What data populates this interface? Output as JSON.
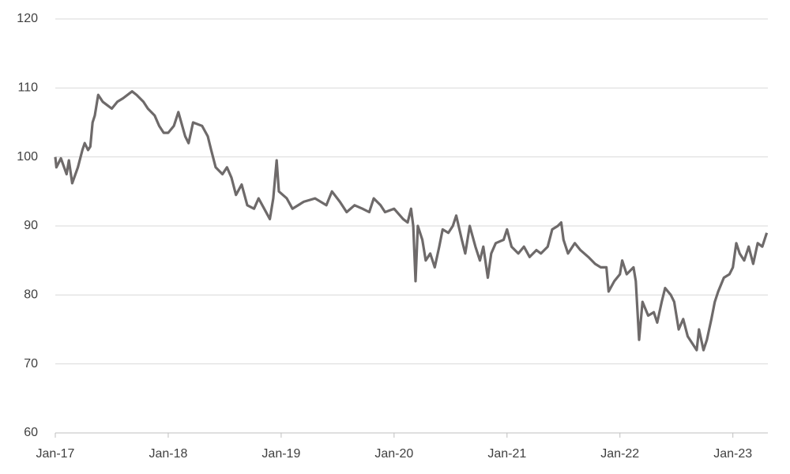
{
  "chart_data": {
    "type": "line",
    "x": [
      2017.0,
      2017.01,
      2017.05,
      2017.1,
      2017.12,
      2017.15,
      2017.2,
      2017.24,
      2017.26,
      2017.29,
      2017.31,
      2017.33,
      2017.35,
      2017.38,
      2017.42,
      2017.46,
      2017.5,
      2017.55,
      2017.6,
      2017.68,
      2017.72,
      2017.78,
      2017.82,
      2017.88,
      2017.92,
      2017.96,
      2018.0,
      2018.05,
      2018.09,
      2018.15,
      2018.18,
      2018.22,
      2018.3,
      2018.35,
      2018.38,
      2018.42,
      2018.48,
      2018.52,
      2018.56,
      2018.6,
      2018.65,
      2018.7,
      2018.76,
      2018.8,
      2018.9,
      2018.93,
      2018.96,
      2018.98,
      2019.05,
      2019.1,
      2019.2,
      2019.3,
      2019.4,
      2019.45,
      2019.52,
      2019.58,
      2019.65,
      2019.72,
      2019.78,
      2019.82,
      2019.88,
      2019.92,
      2020.0,
      2020.08,
      2020.12,
      2020.15,
      2020.17,
      2020.19,
      2020.21,
      2020.25,
      2020.28,
      2020.32,
      2020.36,
      2020.4,
      2020.43,
      2020.48,
      2020.52,
      2020.55,
      2020.6,
      2020.63,
      2020.67,
      2020.72,
      2020.76,
      2020.79,
      2020.83,
      2020.86,
      2020.9,
      2020.97,
      2021.0,
      2021.04,
      2021.1,
      2021.15,
      2021.2,
      2021.26,
      2021.3,
      2021.36,
      2021.4,
      2021.45,
      2021.48,
      2021.5,
      2021.54,
      2021.6,
      2021.65,
      2021.72,
      2021.78,
      2021.83,
      2021.88,
      2021.9,
      2021.95,
      2022.0,
      2022.02,
      2022.06,
      2022.12,
      2022.14,
      2022.17,
      2022.2,
      2022.25,
      2022.3,
      2022.33,
      2022.37,
      2022.4,
      2022.45,
      2022.48,
      2022.52,
      2022.56,
      2022.6,
      2022.64,
      2022.68,
      2022.7,
      2022.74,
      2022.77,
      2022.81,
      2022.84,
      2022.87,
      2022.92,
      2022.97,
      2023.0,
      2023.03,
      2023.06,
      2023.1,
      2023.14,
      2023.18,
      2023.22,
      2023.26,
      2023.3
    ],
    "series": [
      {
        "color": "#6e6a6a",
        "values": [
          100,
          98.5,
          99.8,
          97.5,
          99.5,
          96.2,
          98.5,
          101,
          102,
          101,
          101.5,
          105,
          106,
          109,
          108,
          107.5,
          107,
          108,
          108.5,
          109.5,
          109,
          108,
          107,
          106,
          104.5,
          103.5,
          103.5,
          104.5,
          106.5,
          103,
          102,
          105,
          104.5,
          103,
          101,
          98.5,
          97.5,
          98.5,
          97,
          94.5,
          96,
          93,
          92.5,
          94,
          91,
          94,
          99.5,
          95,
          94,
          92.5,
          93.5,
          94,
          93,
          95,
          93.5,
          92,
          93,
          92.5,
          92,
          94,
          93,
          92,
          92.5,
          91,
          90.5,
          92.5,
          90,
          82,
          90,
          88,
          85,
          86,
          84,
          87,
          89.5,
          89,
          90,
          91.5,
          88,
          86,
          90,
          87,
          85,
          87,
          82.5,
          86,
          87.5,
          88,
          89.5,
          87,
          86,
          87,
          85.5,
          86.5,
          86,
          87,
          89.5,
          90,
          90.5,
          88,
          86,
          87.5,
          86.5,
          85.5,
          84.5,
          84,
          84,
          80.5,
          82,
          83,
          85,
          83,
          84,
          82,
          73.5,
          79,
          77,
          77.5,
          76,
          79,
          81,
          80,
          79,
          75,
          76.5,
          74,
          73,
          72,
          75,
          72,
          73.5,
          76.5,
          79,
          80.5,
          82.5,
          83,
          84,
          87.5,
          86,
          85,
          87,
          84.5,
          87.5,
          87,
          89
        ]
      }
    ],
    "xlim": [
      2017,
      2023.31
    ],
    "xticks": [
      {
        "value": 2017,
        "label": "Jan-17"
      },
      {
        "value": 2018,
        "label": "Jan-18"
      },
      {
        "value": 2019,
        "label": "Jan-19"
      },
      {
        "value": 2020,
        "label": "Jan-20"
      },
      {
        "value": 2021,
        "label": "Jan-21"
      },
      {
        "value": 2022,
        "label": "Jan-22"
      },
      {
        "value": 2023,
        "label": "Jan-23"
      }
    ],
    "ylim": [
      60,
      120
    ],
    "yticks": [
      60,
      70,
      80,
      90,
      100,
      110,
      120
    ],
    "grid": true
  }
}
